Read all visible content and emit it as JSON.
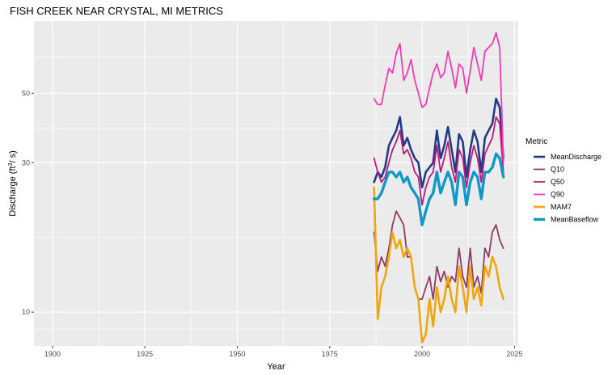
{
  "chart_data": {
    "type": "line",
    "title": "FISH CREEK NEAR CRYSTAL, MI  METRICS",
    "xlabel": "Year",
    "ylabel": "Discharge (ft",
    "ylabel_sup": "3",
    "ylabel_rest": "/ s)",
    "x_scale": "linear",
    "y_scale": "log10",
    "xlim": [
      1895,
      2026
    ],
    "ylim": [
      7.8,
      85
    ],
    "x_ticks": [
      1900,
      1925,
      1950,
      1975,
      2000,
      2025
    ],
    "x_tick_labels": [
      "1900",
      "1925",
      "1950",
      "1975",
      "2000",
      "2025"
    ],
    "y_ticks": [
      10,
      30,
      50
    ],
    "y_tick_labels": [
      "10",
      "30",
      "50"
    ],
    "grid": true,
    "legend_title": "Metric",
    "legend_position": "right",
    "x": [
      1987,
      1988,
      1989,
      1990,
      1991,
      1992,
      1993,
      1994,
      1995,
      1996,
      1997,
      1998,
      1999,
      2000,
      2001,
      2002,
      2003,
      2004,
      2005,
      2006,
      2007,
      2008,
      2009,
      2010,
      2011,
      2012,
      2013,
      2014,
      2015,
      2016,
      2017,
      2018,
      2019,
      2020,
      2021,
      2022
    ],
    "series": [
      {
        "name": "MeanDischarge",
        "color": "#233b86",
        "values": [
          26,
          28,
          27,
          29,
          34,
          36,
          38,
          42,
          34,
          36,
          33,
          31,
          30,
          25,
          28,
          29,
          30,
          38,
          31,
          34,
          39,
          33,
          28,
          37,
          35,
          27,
          33,
          38,
          35,
          28,
          36,
          38,
          40,
          48,
          45,
          31
        ]
      },
      {
        "name": "Q10",
        "color": "#8e3b66",
        "values": [
          18,
          13.5,
          15,
          14,
          16,
          19,
          21,
          20,
          19,
          15,
          15,
          12,
          11,
          11,
          12,
          13,
          11,
          14,
          12.5,
          13.5,
          12,
          13,
          12.5,
          16,
          13,
          12,
          16,
          12,
          13,
          11.5,
          16,
          15,
          18,
          19,
          17,
          16
        ]
      },
      {
        "name": "Q50",
        "color": "#c0187a",
        "values": [
          31,
          28,
          26,
          27,
          30,
          33,
          35,
          38,
          32,
          33,
          31,
          28,
          27,
          22,
          25,
          27,
          28,
          34,
          28,
          31,
          35,
          29,
          26,
          33,
          31,
          25,
          30,
          34,
          31,
          26,
          32,
          34,
          36,
          42,
          40,
          28
        ]
      },
      {
        "name": "Q90",
        "color": "#f13bb2",
        "values": [
          48,
          46,
          46,
          53,
          60,
          58,
          67,
          72,
          55,
          58,
          64,
          55,
          50,
          45,
          46,
          52,
          58,
          62,
          56,
          58,
          68,
          60,
          52,
          62,
          60,
          50,
          59,
          70,
          62,
          55,
          68,
          70,
          72,
          78,
          70,
          30
        ]
      },
      {
        "name": "MAM7",
        "color": "#f0a60e",
        "values": [
          25,
          9.5,
          12,
          13,
          15,
          18,
          16,
          17,
          15,
          16,
          15,
          12,
          11,
          8,
          8.5,
          11,
          9,
          12,
          10,
          11,
          13,
          11,
          10,
          14,
          12,
          10,
          14,
          11,
          12,
          10.5,
          14,
          13,
          15,
          14,
          12,
          11
        ]
      },
      {
        "name": "MeanBaseflow",
        "color": "#1098c8",
        "values": [
          23,
          23,
          24,
          26,
          28,
          28,
          27,
          28,
          26,
          27,
          25,
          24,
          23,
          19,
          21,
          23,
          24,
          28,
          24,
          26,
          28,
          26,
          22,
          28,
          27,
          22,
          26,
          28,
          27,
          23,
          28,
          28,
          29,
          32,
          31,
          27
        ]
      }
    ]
  }
}
